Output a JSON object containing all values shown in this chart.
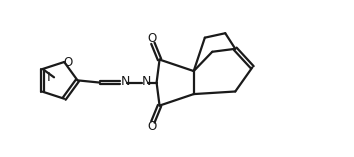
{
  "background": "#ffffff",
  "line_color": "#1a1a1a",
  "line_width": 1.6,
  "figsize": [
    3.54,
    1.57
  ],
  "dpi": 100,
  "xlim": [
    0.0,
    9.5
  ],
  "ylim": [
    0.3,
    4.1
  ]
}
